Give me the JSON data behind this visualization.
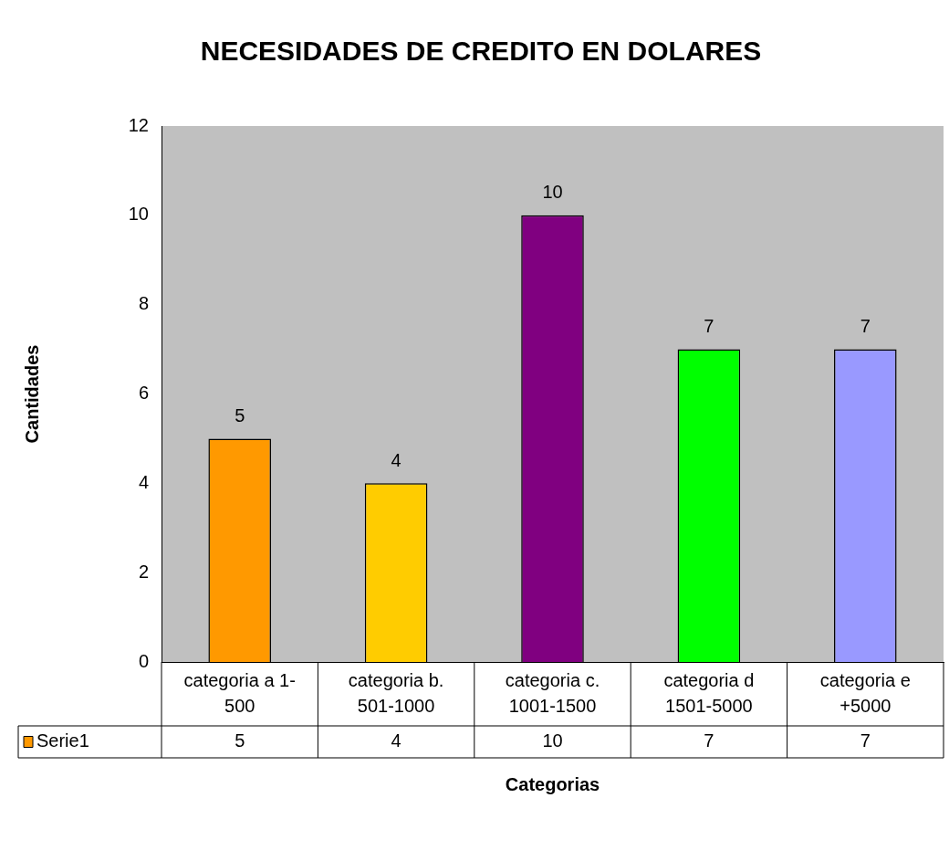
{
  "chart_data": {
    "type": "bar",
    "title": "NECESIDADES DE CREDITO EN DOLARES",
    "xlabel": "Categorias",
    "ylabel": "Cantidades",
    "categories": [
      "categoria a 1-500",
      "categoria b. 501-1000",
      "categoria c. 1001-1500",
      "categoria d 1501-5000",
      "categoria e +5000"
    ],
    "series": [
      {
        "name": "Serie1",
        "color": "#ff9900",
        "colors": [
          "#ff9900",
          "#ffcc00",
          "#800080",
          "#00ff00",
          "#9999ff"
        ],
        "values": [
          5,
          4,
          10,
          7,
          7
        ],
        "value_labels": [
          "5",
          "4",
          "10",
          "7",
          "7"
        ]
      }
    ],
    "ylim": [
      0,
      12
    ],
    "yticks": [
      0,
      2,
      4,
      6,
      8,
      10,
      12
    ],
    "grid": false,
    "annotations": [
      "5",
      "4",
      "10",
      "7",
      "7"
    ]
  }
}
